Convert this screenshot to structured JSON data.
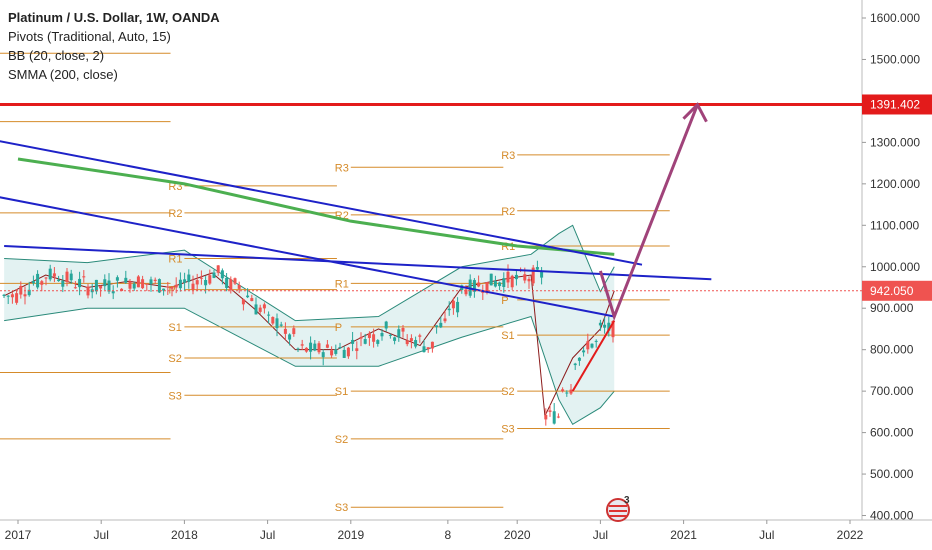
{
  "legend": {
    "title": "Platinum / U.S. Dollar, 1W, OANDA",
    "pivots": "Pivots (Traditional, Auto, 15)",
    "bb": "BB (20, close, 2)",
    "smma": "SMMA (200, close)"
  },
  "price_labels": {
    "resistance": "1391.402",
    "last": "942.050"
  },
  "colors": {
    "candle_up": "#26a69a",
    "candle_down": "#ef5350",
    "pivot": "#d58b2a",
    "trend": "#1e22c8",
    "smma": "#4caf50",
    "bb_basis": "#8b1a1a",
    "bb_band": "#2a8a7a",
    "bb_fill": "#e3f2f2",
    "resistance": "#e31b1b",
    "arrow": "#a0437a"
  },
  "chart_data": {
    "type": "line",
    "ylim": [
      390,
      1660
    ],
    "y_ticks": [
      "1600.000",
      "1500.000",
      "1400.000",
      "1300.000",
      "1200.000",
      "1100.000",
      "1000.000",
      "900.000",
      "800.000",
      "700.000",
      "600.000",
      "500.000",
      "400.000"
    ],
    "x_labels": [
      "2017",
      "Jul",
      "2018",
      "Jul",
      "2019",
      "8",
      "2020",
      "Jul",
      "2021",
      "Jul",
      "2022"
    ],
    "resistance_level": 1391.402,
    "last_price": 942.05,
    "close_series": {
      "x": [
        "2016-12",
        "2017-03",
        "2017-06",
        "2017-09",
        "2017-12",
        "2018-03",
        "2018-06",
        "2018-09",
        "2018-12",
        "2019-03",
        "2019-06",
        "2019-09",
        "2019-12",
        "2020-02",
        "2020-03",
        "2020-05",
        "2020-07",
        "2020-08"
      ],
      "values": [
        930,
        980,
        950,
        965,
        950,
        985,
        900,
        800,
        800,
        850,
        810,
        950,
        970,
        980,
        640,
        780,
        850,
        942
      ]
    },
    "bollinger_upper": {
      "x": [
        "2016-12",
        "2017-06",
        "2018-01",
        "2018-09",
        "2019-03",
        "2019-09",
        "2020-02",
        "2020-04",
        "2020-05",
        "2020-07",
        "2020-08"
      ],
      "values": [
        1020,
        1010,
        1040,
        870,
        880,
        1000,
        1030,
        1080,
        1100,
        940,
        1000
      ]
    },
    "bollinger_lower": {
      "x": [
        "2016-12",
        "2017-06",
        "2018-01",
        "2018-09",
        "2019-03",
        "2019-09",
        "2020-02",
        "2020-04",
        "2020-05",
        "2020-07",
        "2020-08"
      ],
      "values": [
        870,
        900,
        900,
        760,
        760,
        830,
        880,
        680,
        620,
        660,
        700
      ]
    },
    "smma_200": {
      "x": [
        "2017-01",
        "2018-01",
        "2019-01",
        "2020-01",
        "2020-08"
      ],
      "values": [
        1260,
        1200,
        1110,
        1050,
        1030
      ]
    },
    "trendlines": [
      {
        "x": [
          "2016-09",
          "2020-10"
        ],
        "values": [
          1320,
          1005
        ]
      },
      {
        "x": [
          "2016-09",
          "2020-08"
        ],
        "values": [
          1185,
          880
        ]
      },
      {
        "x": [
          "2016-12",
          "2021-03"
        ],
        "values": [
          1050,
          970
        ]
      }
    ],
    "pivot_levels": [
      {
        "label": "R3",
        "x": [
          "2016-09",
          "2017-12"
        ],
        "value": 1515
      },
      {
        "label": "R2",
        "x": [
          "2016-09",
          "2017-12"
        ],
        "value": 1350
      },
      {
        "label": "R1",
        "x": [
          "2016-09",
          "2017-12"
        ],
        "value": 1130
      },
      {
        "label": "P",
        "x": [
          "2016-09",
          "2017-12"
        ],
        "value": 960
      },
      {
        "label": "S1",
        "x": [
          "2016-09",
          "2017-12"
        ],
        "value": 745
      },
      {
        "label": "S2",
        "x": [
          "2016-09",
          "2017-12"
        ],
        "value": 585
      },
      {
        "label": "R3",
        "x": [
          "2018-01",
          "2018-12"
        ],
        "value": 1195
      },
      {
        "label": "R2",
        "x": [
          "2018-01",
          "2018-12"
        ],
        "value": 1130
      },
      {
        "label": "R1",
        "x": [
          "2018-01",
          "2018-12"
        ],
        "value": 1020
      },
      {
        "label": "P",
        "x": [
          "2018-01",
          "2018-12"
        ],
        "value": 945
      },
      {
        "label": "S1",
        "x": [
          "2018-01",
          "2018-12"
        ],
        "value": 855
      },
      {
        "label": "S2",
        "x": [
          "2018-01",
          "2018-12"
        ],
        "value": 780
      },
      {
        "label": "S3",
        "x": [
          "2018-01",
          "2018-12"
        ],
        "value": 690
      },
      {
        "label": "R3",
        "x": [
          "2019-01",
          "2019-12"
        ],
        "value": 1240
      },
      {
        "label": "R2",
        "x": [
          "2019-01",
          "2019-12"
        ],
        "value": 1125
      },
      {
        "label": "R1",
        "x": [
          "2019-01",
          "2019-12"
        ],
        "value": 960
      },
      {
        "label": "P",
        "x": [
          "2019-01",
          "2019-12"
        ],
        "value": 855
      },
      {
        "label": "S1",
        "x": [
          "2019-01",
          "2019-12"
        ],
        "value": 700
      },
      {
        "label": "S2",
        "x": [
          "2019-01",
          "2019-12"
        ],
        "value": 585
      },
      {
        "label": "S3",
        "x": [
          "2019-01",
          "2019-12"
        ],
        "value": 420
      },
      {
        "label": "R3",
        "x": [
          "2020-01",
          "2020-12"
        ],
        "value": 1270
      },
      {
        "label": "R2",
        "x": [
          "2020-01",
          "2020-12"
        ],
        "value": 1135
      },
      {
        "label": "R1",
        "x": [
          "2020-01",
          "2020-12"
        ],
        "value": 1050
      },
      {
        "label": "P",
        "x": [
          "2020-01",
          "2020-12"
        ],
        "value": 920
      },
      {
        "label": "S1",
        "x": [
          "2020-01",
          "2020-12"
        ],
        "value": 835
      },
      {
        "label": "S2",
        "x": [
          "2020-01",
          "2020-12"
        ],
        "value": 700
      },
      {
        "label": "S3",
        "x": [
          "2020-01",
          "2020-12"
        ],
        "value": 610
      }
    ],
    "support_line": {
      "x": [
        "2020-05",
        "2020-08"
      ],
      "values": [
        700,
        870
      ]
    },
    "projection_arrow": {
      "x": [
        "2020-07",
        "2020-08",
        "2021-02"
      ],
      "values": [
        990,
        880,
        1391
      ]
    },
    "drawn_trendlines": 3
  }
}
